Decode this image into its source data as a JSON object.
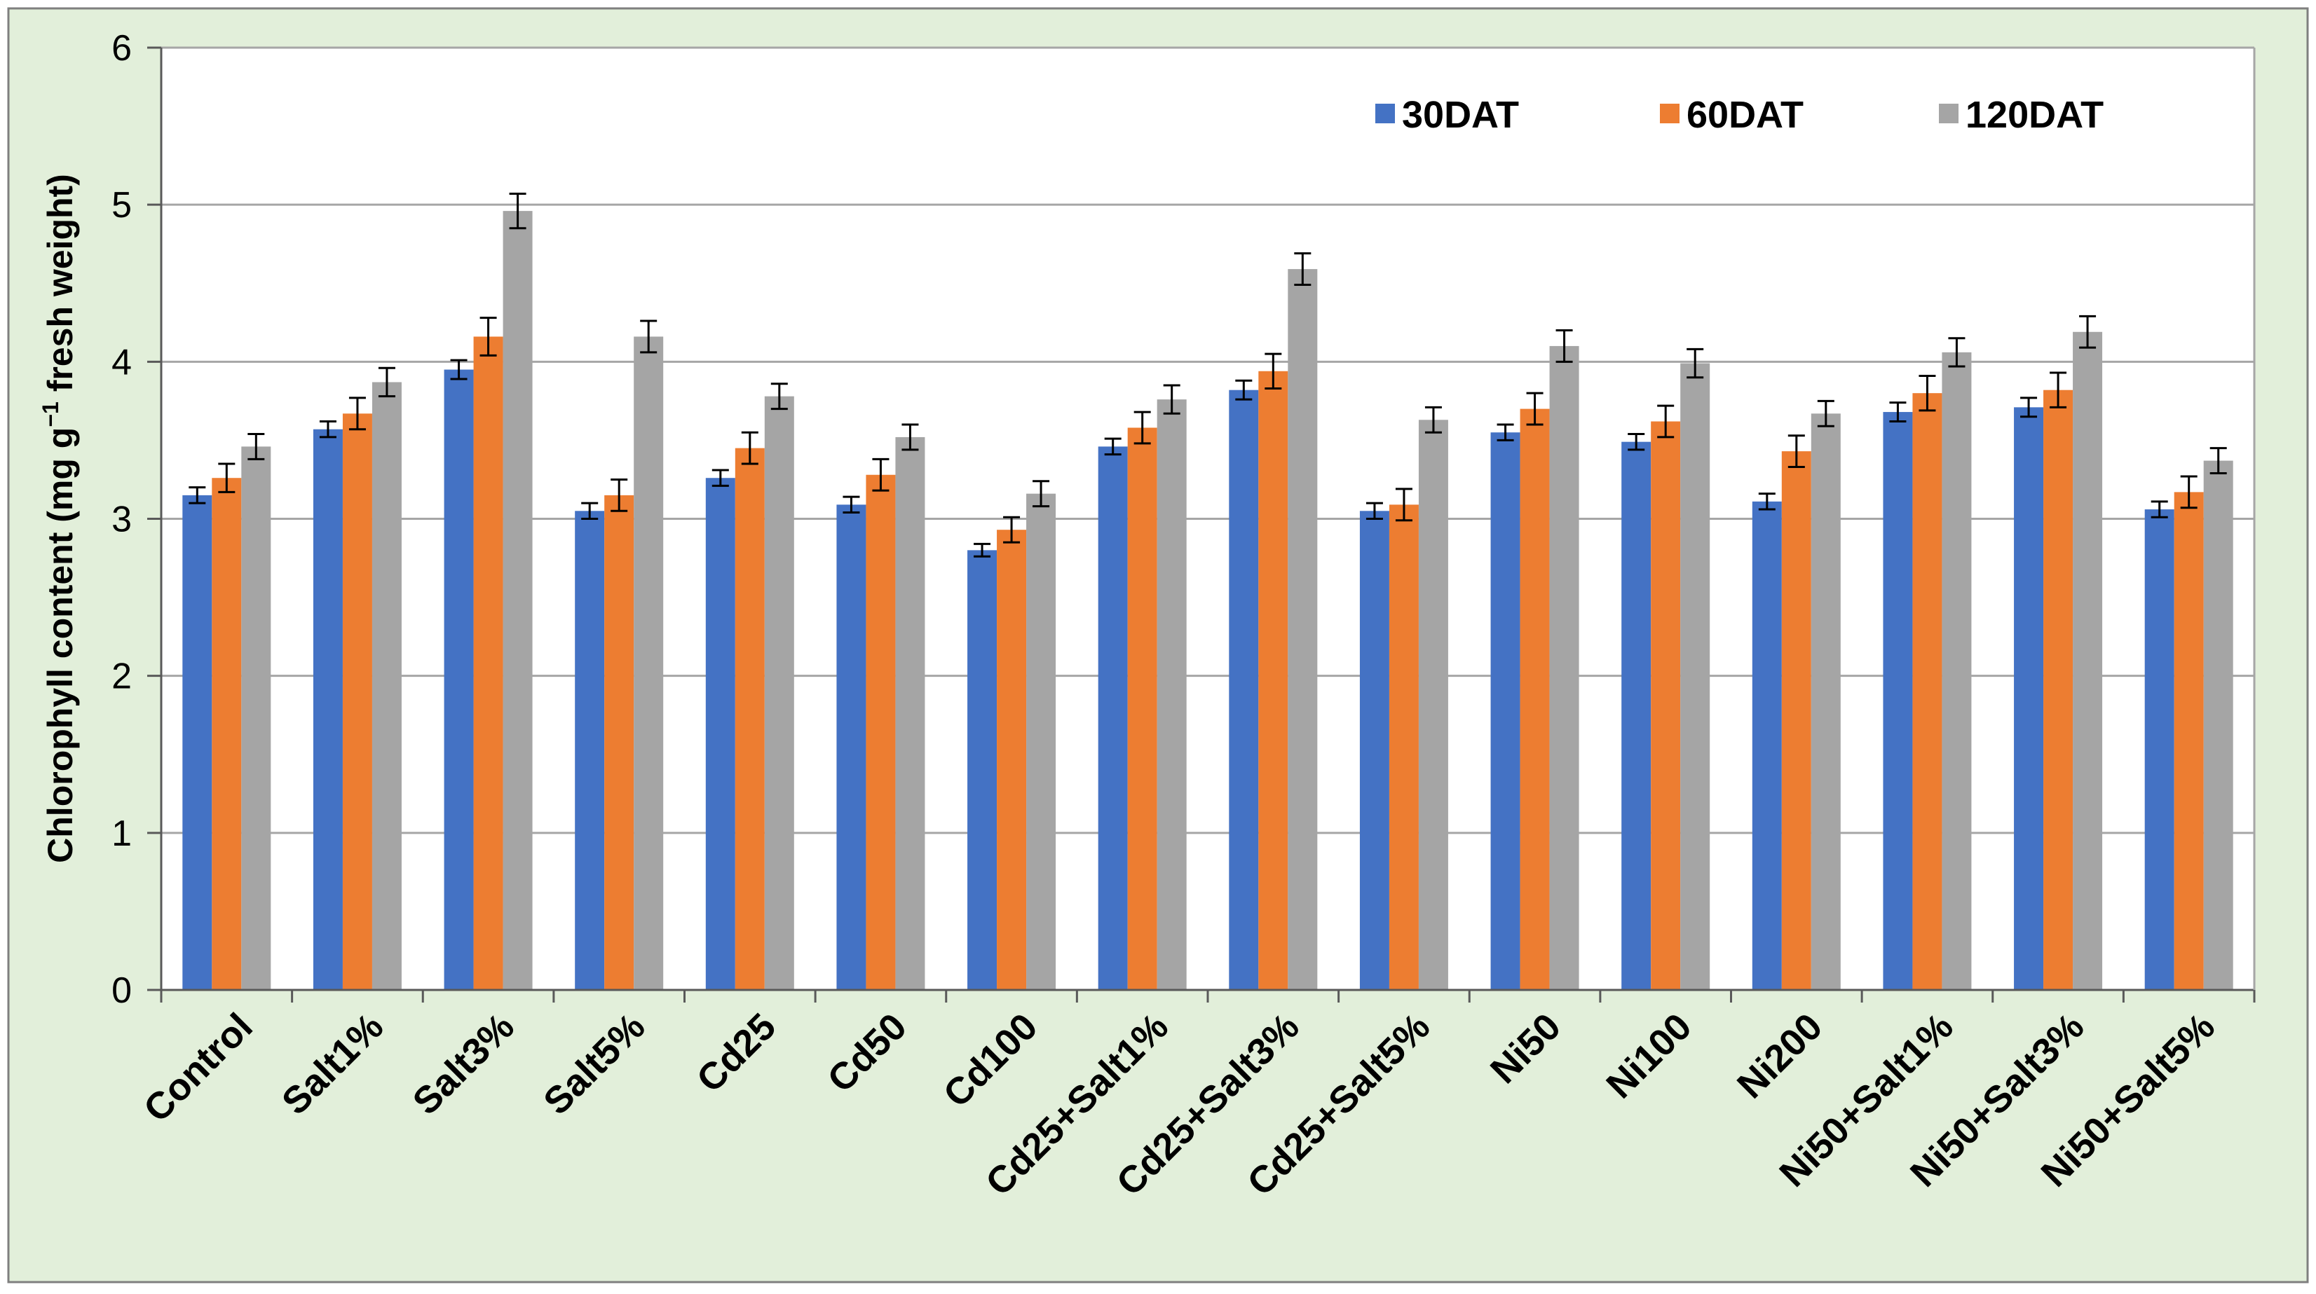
{
  "chart_data": {
    "type": "bar",
    "title": "",
    "xlabel": "",
    "ylabel_main": "Chlorophyll content (mg g",
    "ylabel_sup": "−1",
    "ylabel_tail": "  fresh weight)",
    "ylim": [
      0,
      6
    ],
    "yticks": [
      0,
      1,
      2,
      3,
      4,
      5,
      6
    ],
    "grid": true,
    "legend_position": "top-right",
    "categories": [
      "Control",
      "Salt1%",
      "Salt3%",
      "Salt5%",
      "Cd25",
      "Cd50",
      "Cd100",
      "Cd25+Salt1%",
      "Cd25+Salt3%",
      "Cd25+Salt5%",
      "Ni50",
      "Ni100",
      "Ni200",
      "Ni50+Salt1%",
      "Ni50+Salt3%",
      "Ni50+Salt5%"
    ],
    "series": [
      {
        "name": "30DAT",
        "color": "#4472c4",
        "values": [
          3.15,
          3.57,
          3.95,
          3.05,
          3.26,
          3.09,
          2.8,
          3.46,
          3.82,
          3.05,
          3.55,
          3.49,
          3.11,
          3.68,
          3.71,
          3.06
        ],
        "errors": [
          0.05,
          0.05,
          0.06,
          0.05,
          0.05,
          0.05,
          0.04,
          0.05,
          0.06,
          0.05,
          0.05,
          0.05,
          0.05,
          0.06,
          0.06,
          0.05
        ]
      },
      {
        "name": "60DAT",
        "color": "#ed7d31",
        "values": [
          3.26,
          3.67,
          4.16,
          3.15,
          3.45,
          3.28,
          2.93,
          3.58,
          3.94,
          3.09,
          3.7,
          3.62,
          3.43,
          3.8,
          3.82,
          3.17
        ],
        "errors": [
          0.09,
          0.1,
          0.12,
          0.1,
          0.1,
          0.1,
          0.08,
          0.1,
          0.11,
          0.1,
          0.1,
          0.1,
          0.1,
          0.11,
          0.11,
          0.1
        ]
      },
      {
        "name": "120DAT",
        "color": "#a5a5a5",
        "values": [
          3.46,
          3.87,
          4.96,
          4.16,
          3.78,
          3.52,
          3.16,
          3.76,
          4.59,
          3.63,
          4.1,
          3.99,
          3.67,
          4.06,
          4.19,
          3.37
        ],
        "errors": [
          0.08,
          0.09,
          0.11,
          0.1,
          0.08,
          0.08,
          0.08,
          0.09,
          0.1,
          0.08,
          0.1,
          0.09,
          0.08,
          0.09,
          0.1,
          0.08
        ]
      }
    ]
  }
}
